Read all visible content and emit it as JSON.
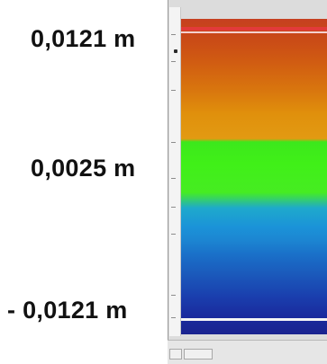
{
  "annotations": {
    "top_label": "0,0121 m",
    "middle_label": "0,0025 m",
    "bottom_label": "- 0,0121 m"
  },
  "ruler": {
    "ticks": [
      "",
      "",
      "",
      "",
      "",
      "",
      "",
      "",
      ""
    ]
  },
  "status_bar": {
    "left_text": "",
    "right_text": ""
  },
  "colors": {
    "top_band": "#c64020",
    "mid_band": "#40f018",
    "low_band": "#1b93d8",
    "bottom_band": "#1a238f",
    "top_line": "#e23a3a"
  }
}
